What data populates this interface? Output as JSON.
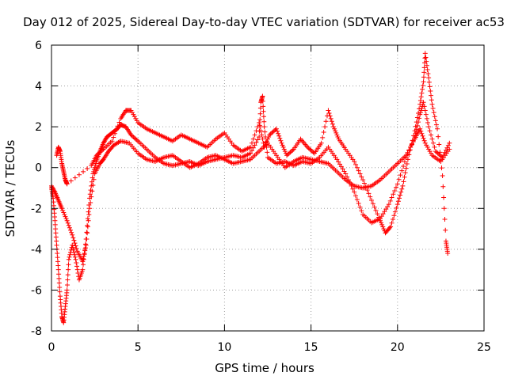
{
  "chart_data": {
    "type": "scatter",
    "title": "Day 012 of 2025, Sidereal Day-to-day VTEC variation (SDTVAR) for receiver ac53",
    "xlabel": "GPS time / hours",
    "ylabel": "SDTVAR / TECUs",
    "xlim": [
      0,
      25
    ],
    "ylim": [
      -8,
      6
    ],
    "xticks": [
      0,
      5,
      10,
      15,
      20,
      25
    ],
    "yticks": [
      -8,
      -6,
      -4,
      -2,
      0,
      2,
      4,
      6
    ],
    "grid": true,
    "marker": "+",
    "series_color": "#ff0000",
    "series": [
      {
        "name": "trace-1",
        "points": [
          [
            0.0,
            -1.0
          ],
          [
            0.1,
            -1.5
          ],
          [
            0.2,
            -2.6
          ],
          [
            0.3,
            -3.8
          ],
          [
            0.4,
            -5.0
          ],
          [
            0.5,
            -6.3
          ],
          [
            0.6,
            -7.3
          ],
          [
            0.7,
            -7.6
          ],
          [
            0.8,
            -6.8
          ],
          [
            0.9,
            -6.0
          ],
          [
            1.0,
            -4.5
          ],
          [
            1.2,
            -3.8
          ],
          [
            1.4,
            -4.5
          ],
          [
            1.6,
            -5.5
          ],
          [
            1.8,
            -5.0
          ],
          [
            2.0,
            -3.5
          ],
          [
            2.2,
            -1.5
          ],
          [
            2.4,
            -0.3
          ],
          [
            2.6,
            0.3
          ],
          [
            2.8,
            0.8
          ],
          [
            3.0,
            1.2
          ],
          [
            3.2,
            1.5
          ],
          [
            3.5,
            1.7
          ],
          [
            3.8,
            1.9
          ],
          [
            4.0,
            2.1
          ],
          [
            4.3,
            2.0
          ],
          [
            4.6,
            1.6
          ],
          [
            5.0,
            1.3
          ],
          [
            5.5,
            0.9
          ],
          [
            6.0,
            0.5
          ],
          [
            6.5,
            0.2
          ],
          [
            7.0,
            0.1
          ],
          [
            7.5,
            0.2
          ],
          [
            8.0,
            0.3
          ],
          [
            8.5,
            0.1
          ],
          [
            9.0,
            0.3
          ],
          [
            9.5,
            0.4
          ],
          [
            10.0,
            0.5
          ],
          [
            10.5,
            0.6
          ],
          [
            11.0,
            0.5
          ],
          [
            11.5,
            0.7
          ],
          [
            12.0,
            1.5
          ],
          [
            12.1,
            3.2
          ],
          [
            12.2,
            3.5
          ],
          [
            12.3,
            2.0
          ],
          [
            12.5,
            0.5
          ],
          [
            13.0,
            0.2
          ],
          [
            13.5,
            0.3
          ],
          [
            14.0,
            0.1
          ],
          [
            14.5,
            0.3
          ],
          [
            15.0,
            0.2
          ],
          [
            15.5,
            0.5
          ],
          [
            16.0,
            1.0
          ],
          [
            16.5,
            0.4
          ],
          [
            17.0,
            -0.3
          ],
          [
            17.5,
            -1.2
          ],
          [
            18.0,
            -2.3
          ],
          [
            18.5,
            -2.7
          ],
          [
            19.0,
            -2.5
          ],
          [
            19.5,
            -1.8
          ],
          [
            20.0,
            -0.8
          ],
          [
            20.5,
            0.5
          ],
          [
            21.0,
            1.5
          ],
          [
            21.3,
            2.6
          ],
          [
            21.5,
            3.2
          ],
          [
            21.8,
            2.0
          ],
          [
            22.2,
            0.8
          ],
          [
            22.6,
            0.5
          ],
          [
            23.0,
            1.2
          ]
        ]
      },
      {
        "name": "trace-2",
        "points": [
          [
            0.0,
            -0.9
          ],
          [
            0.2,
            -1.2
          ],
          [
            0.4,
            -1.6
          ],
          [
            0.6,
            -2.0
          ],
          [
            0.9,
            -2.6
          ],
          [
            1.2,
            -3.3
          ],
          [
            1.5,
            -4.1
          ],
          [
            1.8,
            -4.6
          ],
          [
            2.0,
            -3.8
          ],
          [
            2.2,
            -2.0
          ],
          [
            2.5,
            -0.3
          ],
          [
            2.8,
            0.2
          ],
          [
            3.0,
            0.4
          ],
          [
            3.3,
            0.8
          ],
          [
            3.6,
            1.1
          ],
          [
            4.0,
            1.3
          ],
          [
            4.5,
            1.2
          ],
          [
            5.0,
            0.7
          ],
          [
            5.5,
            0.4
          ],
          [
            6.0,
            0.3
          ],
          [
            6.5,
            0.5
          ],
          [
            7.0,
            0.6
          ],
          [
            7.5,
            0.3
          ],
          [
            8.0,
            0.0
          ],
          [
            8.5,
            0.2
          ],
          [
            9.0,
            0.5
          ],
          [
            9.5,
            0.6
          ],
          [
            10.0,
            0.4
          ],
          [
            10.5,
            0.2
          ],
          [
            11.0,
            0.3
          ],
          [
            11.5,
            0.4
          ],
          [
            12.0,
            0.8
          ],
          [
            12.5,
            1.2
          ],
          [
            13.0,
            0.6
          ],
          [
            13.5,
            0.0
          ],
          [
            14.0,
            0.3
          ],
          [
            14.5,
            0.5
          ],
          [
            15.0,
            0.4
          ],
          [
            15.5,
            0.3
          ],
          [
            16.0,
            0.2
          ],
          [
            16.5,
            -0.2
          ],
          [
            17.0,
            -0.6
          ],
          [
            17.5,
            -0.9
          ],
          [
            18.0,
            -1.0
          ],
          [
            18.5,
            -0.9
          ],
          [
            19.0,
            -0.6
          ],
          [
            19.5,
            -0.2
          ],
          [
            20.0,
            0.2
          ],
          [
            20.5,
            0.6
          ],
          [
            21.0,
            1.4
          ],
          [
            21.3,
            1.9
          ],
          [
            21.6,
            1.2
          ],
          [
            22.0,
            0.6
          ],
          [
            22.5,
            0.3
          ],
          [
            23.0,
            0.9
          ]
        ]
      },
      {
        "name": "trace-3",
        "points": [
          [
            0.3,
            0.6
          ],
          [
            0.4,
            1.0
          ],
          [
            0.5,
            0.8
          ],
          [
            0.6,
            0.2
          ],
          [
            0.7,
            -0.2
          ],
          [
            0.8,
            -0.6
          ],
          [
            0.9,
            -0.8
          ],
          [
            2.3,
            0.1
          ],
          [
            2.6,
            0.6
          ],
          [
            3.0,
            0.9
          ],
          [
            3.5,
            1.3
          ],
          [
            4.0,
            2.4
          ],
          [
            4.3,
            2.8
          ],
          [
            4.6,
            2.8
          ],
          [
            5.0,
            2.2
          ],
          [
            5.5,
            1.9
          ],
          [
            6.0,
            1.7
          ],
          [
            6.5,
            1.5
          ],
          [
            7.0,
            1.3
          ],
          [
            7.5,
            1.6
          ],
          [
            8.0,
            1.4
          ],
          [
            8.5,
            1.2
          ],
          [
            9.0,
            1.0
          ],
          [
            9.5,
            1.4
          ],
          [
            10.0,
            1.7
          ],
          [
            10.5,
            1.1
          ],
          [
            11.0,
            0.8
          ],
          [
            11.5,
            1.0
          ],
          [
            12.0,
            2.2
          ],
          [
            12.3,
            1.0
          ],
          [
            12.6,
            1.6
          ],
          [
            13.0,
            1.9
          ],
          [
            13.3,
            1.2
          ],
          [
            13.6,
            0.6
          ],
          [
            14.0,
            0.9
          ],
          [
            14.4,
            1.4
          ],
          [
            14.8,
            1.0
          ],
          [
            15.2,
            0.7
          ],
          [
            15.6,
            1.2
          ],
          [
            16.0,
            2.8
          ],
          [
            16.3,
            2.0
          ],
          [
            16.6,
            1.4
          ],
          [
            17.0,
            0.9
          ],
          [
            17.5,
            0.3
          ],
          [
            18.0,
            -0.6
          ],
          [
            18.5,
            -1.6
          ],
          [
            19.0,
            -2.6
          ],
          [
            19.3,
            -3.2
          ],
          [
            19.6,
            -2.9
          ],
          [
            20.0,
            -1.8
          ],
          [
            20.3,
            -0.9
          ],
          [
            20.6,
            0.4
          ],
          [
            21.0,
            1.8
          ],
          [
            21.3,
            3.1
          ],
          [
            21.5,
            4.2
          ],
          [
            21.6,
            5.6
          ],
          [
            21.8,
            4.4
          ],
          [
            22.0,
            3.1
          ],
          [
            22.3,
            1.9
          ],
          [
            22.6,
            -0.4
          ],
          [
            22.8,
            -3.6
          ],
          [
            22.9,
            -4.2
          ]
        ]
      }
    ]
  }
}
